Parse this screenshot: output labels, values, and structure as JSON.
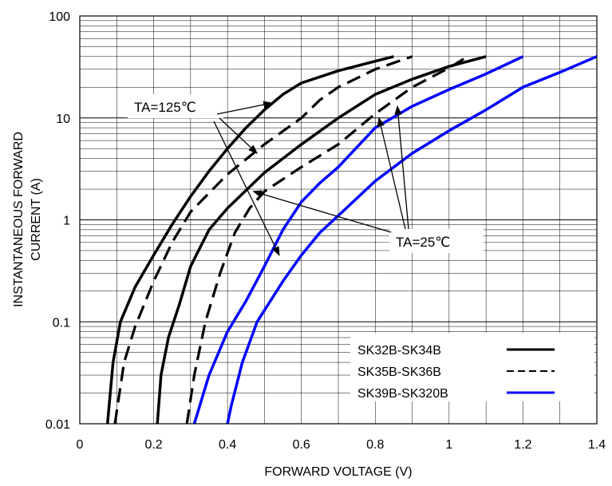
{
  "chart_data": {
    "type": "line",
    "title": "",
    "xlabel": "FORWARD VOLTAGE (V)",
    "ylabel_lines": [
      "INSTANTANEOUS FORWARD",
      "CURRENT (A)"
    ],
    "x_scale": "linear",
    "y_scale": "log",
    "xlim": [
      0,
      1.4
    ],
    "ylim": [
      0.01,
      100
    ],
    "x_ticks": [
      0,
      0.2,
      0.4,
      0.6,
      0.8,
      1,
      1.2,
      1.4
    ],
    "x_tick_labels": [
      "0",
      "0.2",
      "0.4",
      "0.6",
      "0.8",
      "1",
      "1.2",
      "1.4"
    ],
    "y_ticks": [
      0.01,
      0.1,
      1,
      10,
      100
    ],
    "y_tick_labels": [
      "0.01",
      "0.1",
      "1",
      "10",
      "100"
    ],
    "grid": true,
    "legend_position": "bottom-right",
    "legend": [
      {
        "label": "SK32B-SK34B",
        "style": "solid",
        "color": "#000000"
      },
      {
        "label": "SK35B-SK36B",
        "style": "dashed",
        "color": "#000000"
      },
      {
        "label": "SK39B-SK320B",
        "style": "solid",
        "color": "#0000ff"
      }
    ],
    "series": [
      {
        "group": "SK32B-SK34B",
        "condition": "TA=125℃",
        "style": "solid",
        "color": "#000000",
        "x": [
          0.075,
          0.09,
          0.11,
          0.15,
          0.2,
          0.25,
          0.3,
          0.35,
          0.4,
          0.45,
          0.5,
          0.55,
          0.6,
          0.7,
          0.8,
          0.85
        ],
        "y": [
          0.01,
          0.04,
          0.1,
          0.22,
          0.45,
          0.9,
          1.7,
          3.0,
          5.0,
          8.0,
          12.0,
          17.0,
          22.0,
          29.0,
          36.0,
          40.0
        ]
      },
      {
        "group": "SK35B-SK36B",
        "condition": "TA=125℃",
        "style": "dashed",
        "color": "#000000",
        "x": [
          0.095,
          0.12,
          0.15,
          0.2,
          0.25,
          0.3,
          0.4,
          0.5,
          0.6,
          0.65,
          0.7,
          0.8,
          0.9
        ],
        "y": [
          0.01,
          0.04,
          0.09,
          0.25,
          0.6,
          1.2,
          2.8,
          5.5,
          10.0,
          15.0,
          20.0,
          30.0,
          40.0
        ]
      },
      {
        "group": "SK32B-SK34B",
        "condition": "TA=25℃",
        "style": "solid",
        "color": "#000000",
        "x": [
          0.21,
          0.22,
          0.24,
          0.27,
          0.3,
          0.35,
          0.4,
          0.5,
          0.6,
          0.7,
          0.8,
          0.9,
          1.0,
          1.1
        ],
        "y": [
          0.01,
          0.03,
          0.07,
          0.15,
          0.35,
          0.8,
          1.3,
          2.9,
          5.5,
          10.0,
          17.0,
          24.0,
          32.0,
          40.0
        ]
      },
      {
        "group": "SK35B-SK36B",
        "condition": "TA=25℃",
        "style": "dashed",
        "color": "#000000",
        "x": [
          0.29,
          0.31,
          0.34,
          0.38,
          0.42,
          0.46,
          0.5,
          0.6,
          0.7,
          0.8,
          0.9,
          1.0,
          1.05
        ],
        "y": [
          0.01,
          0.03,
          0.1,
          0.3,
          0.75,
          1.3,
          1.9,
          3.3,
          5.5,
          11.0,
          20.0,
          31.0,
          40.0
        ]
      },
      {
        "group": "SK39B-SK320B",
        "condition": "TA=125℃",
        "style": "solid",
        "color": "#0000ff",
        "x": [
          0.31,
          0.35,
          0.4,
          0.45,
          0.5,
          0.55,
          0.6,
          0.65,
          0.7,
          0.8,
          0.9,
          1.0,
          1.1,
          1.2
        ],
        "y": [
          0.01,
          0.03,
          0.08,
          0.16,
          0.35,
          0.8,
          1.5,
          2.3,
          3.3,
          8.0,
          13.0,
          19.0,
          27.0,
          40.0
        ]
      },
      {
        "group": "SK39B-SK320B",
        "condition": "TA=25℃",
        "style": "solid",
        "color": "#0000ff",
        "x": [
          0.4,
          0.41,
          0.44,
          0.48,
          0.55,
          0.6,
          0.65,
          0.7,
          0.8,
          0.9,
          1.0,
          1.1,
          1.2,
          1.3,
          1.4
        ],
        "y": [
          0.01,
          0.015,
          0.04,
          0.1,
          0.25,
          0.45,
          0.75,
          1.1,
          2.4,
          4.5,
          7.5,
          12.0,
          20.0,
          28.0,
          40.0
        ]
      }
    ],
    "annotations": [
      {
        "text": "TA=125℃",
        "arrow_targets": [
          [
            0.52,
            14.0
          ],
          [
            0.48,
            4.5
          ],
          [
            0.54,
            0.45
          ]
        ]
      },
      {
        "text": "TA=25℃",
        "arrow_targets": [
          [
            0.47,
            1.9
          ],
          [
            0.81,
            10.0
          ],
          [
            0.86,
            13.0
          ]
        ]
      }
    ]
  }
}
